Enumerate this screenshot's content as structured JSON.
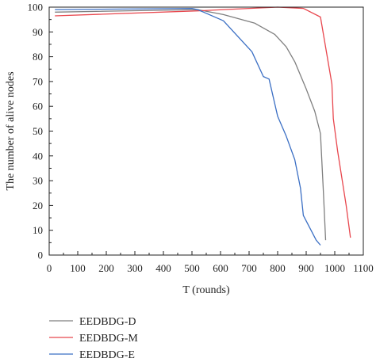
{
  "chart_data": {
    "type": "line",
    "title": "",
    "xlabel": "T (rounds)",
    "ylabel": "The number of alive nodes",
    "xlim": [
      0,
      1100
    ],
    "ylim": [
      0,
      100
    ],
    "x_ticks": [
      "0",
      "100",
      "200",
      "300",
      "400",
      "500",
      "600",
      "700",
      "800",
      "900",
      "1000",
      "1100"
    ],
    "y_ticks": [
      "0",
      "10",
      "20",
      "30",
      "40",
      "50",
      "60",
      "70",
      "80",
      "90",
      "100"
    ],
    "grid": false,
    "legend_position": "below",
    "series": [
      {
        "name": "EEDBDG-D",
        "color": "#7f7f7f",
        "points": [
          [
            20,
            98
          ],
          [
            520,
            99
          ],
          [
            610,
            97
          ],
          [
            720,
            93.5
          ],
          [
            790,
            89
          ],
          [
            830,
            84
          ],
          [
            860,
            78
          ],
          [
            900,
            67
          ],
          [
            930,
            58
          ],
          [
            950,
            49
          ],
          [
            960,
            26
          ],
          [
            968,
            6
          ]
        ]
      },
      {
        "name": "EEDBDG-M",
        "color": "#e8474e",
        "points": [
          [
            20,
            96.5
          ],
          [
            520,
            98.5
          ],
          [
            700,
            99.5
          ],
          [
            800,
            100
          ],
          [
            890,
            99.5
          ],
          [
            950,
            96
          ],
          [
            990,
            69
          ],
          [
            995,
            55
          ],
          [
            1010,
            42
          ],
          [
            1040,
            20
          ],
          [
            1055,
            7
          ]
        ]
      },
      {
        "name": "EEDBDG-E",
        "color": "#3b6fc4",
        "points": [
          [
            20,
            99
          ],
          [
            500,
            99.5
          ],
          [
            520,
            99
          ],
          [
            610,
            94.5
          ],
          [
            710,
            82
          ],
          [
            750,
            72
          ],
          [
            770,
            71
          ],
          [
            800,
            56
          ],
          [
            830,
            48
          ],
          [
            860,
            38.5
          ],
          [
            880,
            27
          ],
          [
            890,
            16
          ],
          [
            935,
            6
          ],
          [
            950,
            4
          ]
        ]
      }
    ]
  }
}
